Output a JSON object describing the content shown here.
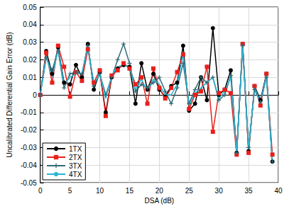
{
  "chart_data": {
    "type": "line",
    "x_label": "DSA (dB)",
    "y_label": "Uncalibrated Differential Gain Error (dB)",
    "x": [
      0,
      1,
      2,
      3,
      4,
      5,
      6,
      7,
      8,
      9,
      10,
      11,
      12,
      13,
      14,
      15,
      16,
      17,
      18,
      19,
      20,
      21,
      22,
      23,
      24,
      25,
      26,
      27,
      28,
      29,
      30,
      31,
      32,
      33,
      34,
      35,
      36,
      37,
      38,
      39
    ],
    "series": [
      {
        "name": "1TX",
        "color": "#000000",
        "marker": "circle",
        "values": [
          0,
          0.025,
          0.012,
          0.027,
          0.007,
          0.006,
          0.017,
          0.01,
          0.029,
          0.003,
          0.013,
          -0.01,
          0.01,
          0.015,
          0.017,
          0.016,
          -0.005,
          0.018,
          0.003,
          0.012,
          0.003,
          -0.001,
          0.005,
          0.007,
          0.028,
          -0.009,
          -0.005,
          0.01,
          -0.003,
          0.038,
          0.0,
          0.003,
          0.014,
          -0.033,
          0.029,
          -0.032,
          0.005,
          -0.003,
          0.012,
          -0.038
        ]
      },
      {
        "name": "2TX",
        "color": "#e8201c",
        "marker": "square",
        "values": [
          0,
          0.024,
          0.007,
          0.028,
          0.016,
          -0.001,
          0.013,
          0.008,
          0.026,
          0.007,
          0.014,
          -0.012,
          0.011,
          0.014,
          0.018,
          0.015,
          0.006,
          0.01,
          -0.005,
          0.015,
          0.004,
          -0.002,
          0.004,
          0.013,
          0.023,
          -0.008,
          0.0,
          0.002,
          0.016,
          -0.021,
          0.001,
          0.003,
          0.001,
          -0.034,
          0.029,
          -0.033,
          0.005,
          -0.006,
          0.012,
          -0.034
        ]
      },
      {
        "name": "3TX",
        "color": "#2e6b78",
        "marker": "plus",
        "values": [
          0,
          0.021,
          0.014,
          0.025,
          0.004,
          0.012,
          0.013,
          0.012,
          0.028,
          0.005,
          0.012,
          0.0,
          0.01,
          0.02,
          0.029,
          0.018,
          0.002,
          0.006,
          0.004,
          0.007,
          0.01,
          0.002,
          -0.005,
          0.004,
          0.018,
          -0.005,
          0.003,
          0.01,
          0.007,
          0.01,
          -0.003,
          0.0,
          0.011,
          -0.033,
          0.028,
          -0.03,
          0.003,
          -0.004,
          0.01,
          -0.038
        ]
      },
      {
        "name": "4TX",
        "color": "#29b6d4",
        "marker": "none",
        "values": [
          0,
          0.022,
          0.01,
          0.026,
          0.006,
          0.01,
          0.012,
          0.012,
          0.028,
          0.006,
          0.012,
          -0.002,
          0.011,
          0.016,
          0.017,
          0.016,
          0.003,
          0.009,
          0.002,
          0.009,
          0.006,
          0.0,
          0.0,
          0.006,
          0.023,
          -0.006,
          0.001,
          0.004,
          0.007,
          0.01,
          -0.002,
          0.002,
          0.01,
          -0.033,
          0.028,
          -0.031,
          0.004,
          -0.004,
          0.011,
          -0.038
        ]
      }
    ],
    "xlim": [
      0,
      40
    ],
    "xticks": [
      0,
      5,
      10,
      15,
      20,
      25,
      30,
      35,
      40
    ],
    "ylim": [
      -0.05,
      0.05
    ],
    "yticks": [
      -0.05,
      -0.04,
      -0.03,
      -0.02,
      -0.01,
      0,
      0.01,
      0.02,
      0.03,
      0.04,
      0.05
    ],
    "grid": true,
    "legend": "lower left"
  }
}
